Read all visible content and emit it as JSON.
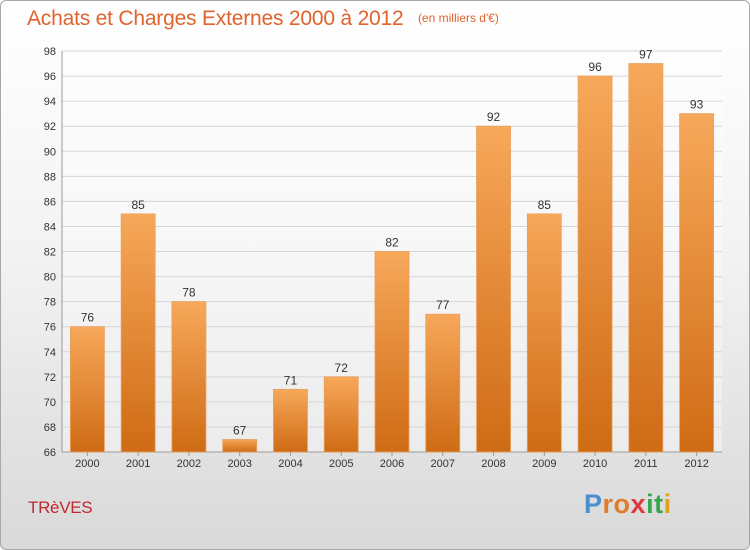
{
  "header": {
    "title": "Achats et Charges Externes 2000 à 2012",
    "unit": "(en milliers d'€)"
  },
  "place": "TRèVES",
  "logo": {
    "letters": [
      "P",
      "r",
      "o",
      "x",
      "i",
      "t",
      "i"
    ],
    "colors": [
      "#4a8fd0",
      "#e07b2a",
      "#e07b2a",
      "#e0383c",
      "#3aa64a",
      "#3aa64a",
      "#e0a020"
    ]
  },
  "colors": {
    "bar_top": "#f7a85a",
    "bar_bottom": "#cf6b15",
    "accent": "#e0632c",
    "place": "#c0282f"
  },
  "chart_data": {
    "type": "bar",
    "title": "Achats et Charges Externes 2000 à 2012",
    "subtitle": "(en milliers d'€)",
    "categories": [
      "2000",
      "2001",
      "2002",
      "2003",
      "2004",
      "2005",
      "2006",
      "2007",
      "2008",
      "2009",
      "2010",
      "2011",
      "2012"
    ],
    "values": [
      76,
      85,
      78,
      67,
      71,
      72,
      82,
      77,
      92,
      85,
      96,
      97,
      93
    ],
    "ylim": [
      66,
      98
    ],
    "yticks": [
      66,
      68,
      70,
      72,
      74,
      76,
      78,
      80,
      82,
      84,
      86,
      88,
      90,
      92,
      94,
      96,
      98
    ],
    "grid": true,
    "xlabel": "",
    "ylabel": ""
  }
}
